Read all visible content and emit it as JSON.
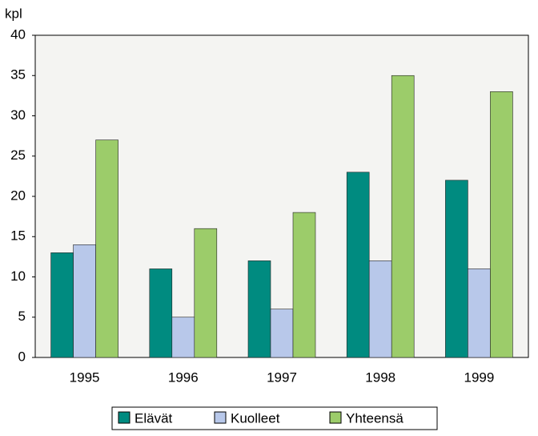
{
  "chart_data": {
    "type": "bar",
    "y_label": "kpl",
    "categories": [
      "1995",
      "1996",
      "1997",
      "1998",
      "1999"
    ],
    "series": [
      {
        "name": "Elävät",
        "color": "#008b80",
        "values": [
          13,
          11,
          12,
          23,
          22
        ]
      },
      {
        "name": "Kuolleet",
        "color": "#b8c8ea",
        "values": [
          14,
          5,
          6,
          12,
          11
        ]
      },
      {
        "name": "Yhteensä",
        "color": "#9ccc6a",
        "values": [
          27,
          16,
          18,
          35,
          33
        ]
      }
    ],
    "ylim": [
      0,
      40
    ],
    "yticks": [
      0,
      5,
      10,
      15,
      20,
      25,
      30,
      35,
      40
    ],
    "legend": "bottom"
  }
}
